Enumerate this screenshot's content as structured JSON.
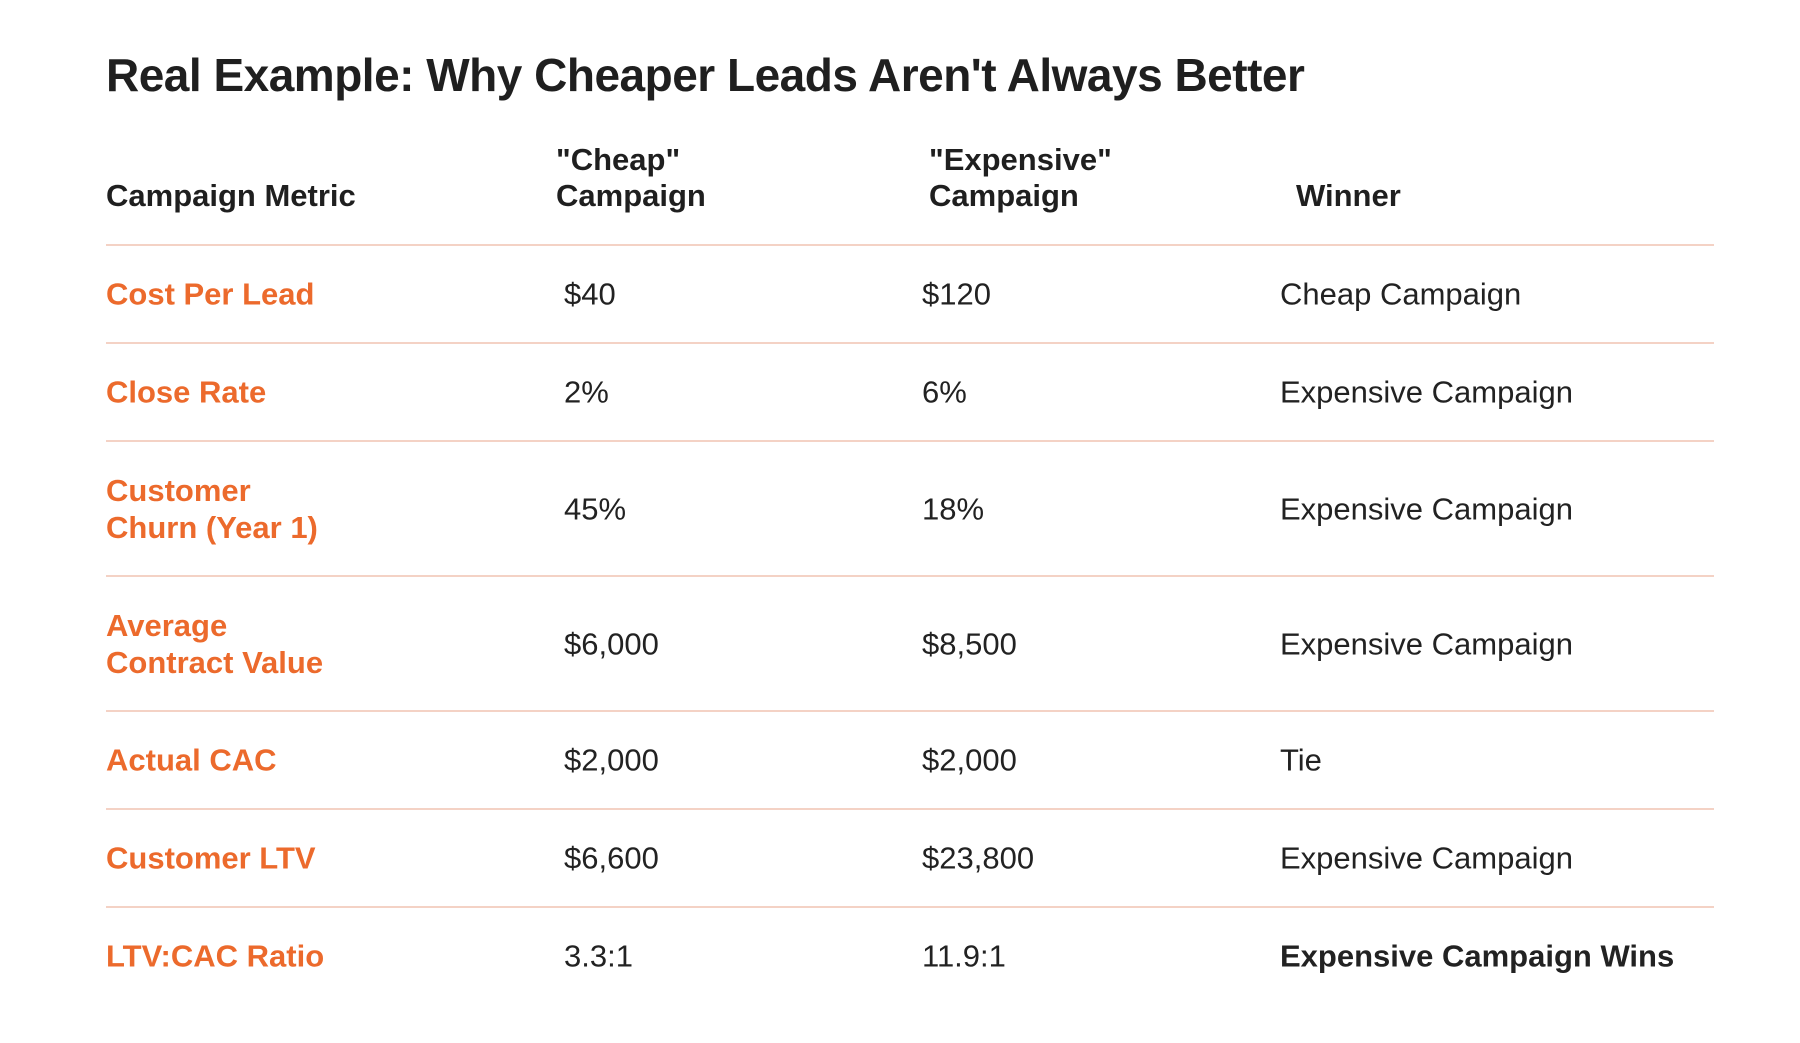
{
  "title": "Real Example: Why Cheaper Leads Aren't Always Better",
  "table": {
    "headers": [
      [
        "Campaign Metric"
      ],
      [
        "\"Cheap\"",
        "Campaign"
      ],
      [
        "\"Expensive\"",
        "Campaign"
      ],
      [
        "Winner"
      ]
    ],
    "rows": [
      {
        "metric": [
          "Cost Per Lead"
        ],
        "cheap": "$40",
        "expensive": "$120",
        "winner": "Cheap Campaign"
      },
      {
        "metric": [
          "Close Rate"
        ],
        "cheap": "2%",
        "expensive": "6%",
        "winner": "Expensive Campaign"
      },
      {
        "metric": [
          "Customer",
          "Churn (Year 1)"
        ],
        "cheap": "45%",
        "expensive": "18%",
        "winner": "Expensive Campaign"
      },
      {
        "metric": [
          "Average",
          "Contract Value"
        ],
        "cheap": "$6,000",
        "expensive": "$8,500",
        "winner": "Expensive Campaign"
      },
      {
        "metric": [
          "Actual CAC"
        ],
        "cheap": "$2,000",
        "expensive": "$2,000",
        "winner": "Tie"
      },
      {
        "metric": [
          "Customer LTV"
        ],
        "cheap": "$6,600",
        "expensive": "$23,800",
        "winner": "Expensive Campaign"
      },
      {
        "metric": [
          "LTV:CAC Ratio"
        ],
        "cheap": "3.3:1",
        "expensive": "11.9:1",
        "winner": "Expensive Campaign Wins"
      }
    ]
  },
  "colors": {
    "accent": "#ec6a2c",
    "divider": "#f4d2c5",
    "text": "#222222"
  }
}
